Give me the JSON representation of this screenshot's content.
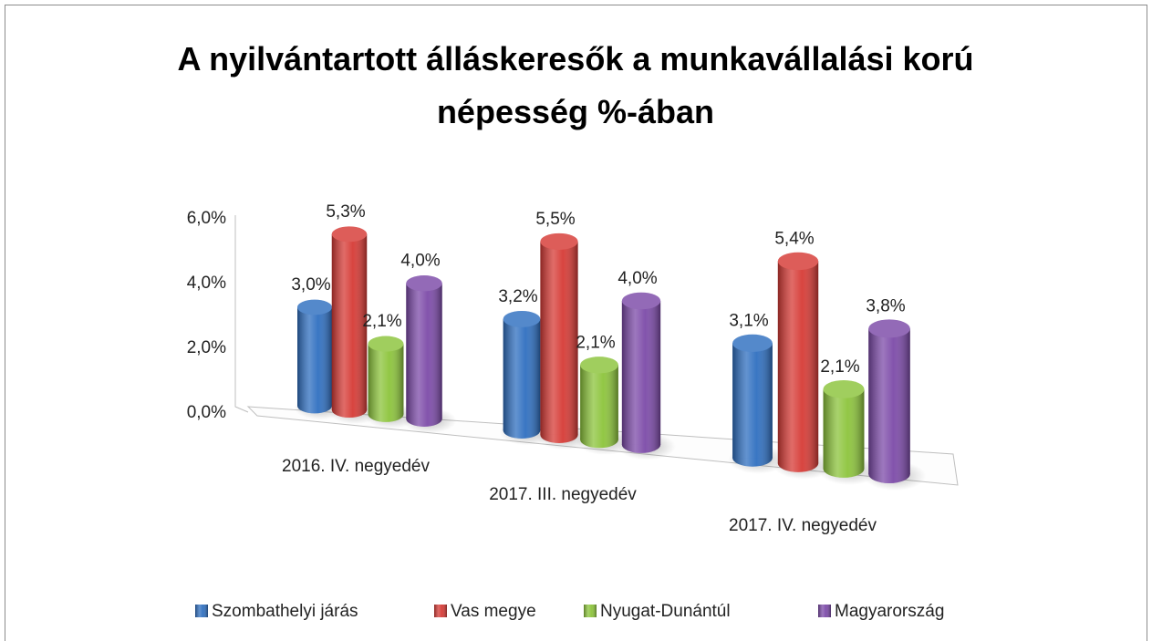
{
  "chart_data": {
    "type": "bar3d",
    "title": "A nyilvántartott álláskeresők a munkavállalási korú népesség %-ában",
    "categories": [
      "2016. IV. negyedév",
      "2017. III. negyedév",
      "2017. IV. negyedév"
    ],
    "series": [
      {
        "name": "Szombathelyi járás",
        "color": "#2f6fc0",
        "values": [
          3.0,
          3.2,
          3.1
        ],
        "value_labels": [
          "3,0%",
          "3,2%",
          "3,1%"
        ]
      },
      {
        "name": "Vas megye",
        "color": "#d63a35",
        "values": [
          5.3,
          5.5,
          5.4
        ],
        "value_labels": [
          "5,3%",
          "5,5%",
          "5,4%"
        ]
      },
      {
        "name": "Nyugat-Dunántúl",
        "color": "#8cc43b",
        "values": [
          2.1,
          2.1,
          2.1
        ],
        "value_labels": [
          "2,1%",
          "2,1%",
          "2,1%"
        ]
      },
      {
        "name": "Magyarország",
        "color": "#7c4aa8",
        "values": [
          4.0,
          4.0,
          3.8
        ],
        "value_labels": [
          "4,0%",
          "4,0%",
          "3,8%"
        ]
      }
    ],
    "ylim": [
      0,
      6
    ],
    "yticks": [
      {
        "value": 0,
        "label": "0,0%"
      },
      {
        "value": 2,
        "label": "2,0%"
      },
      {
        "value": 4,
        "label": "4,0%"
      },
      {
        "value": 6,
        "label": "6,0%"
      }
    ],
    "grid": false,
    "legend": "bottom"
  }
}
